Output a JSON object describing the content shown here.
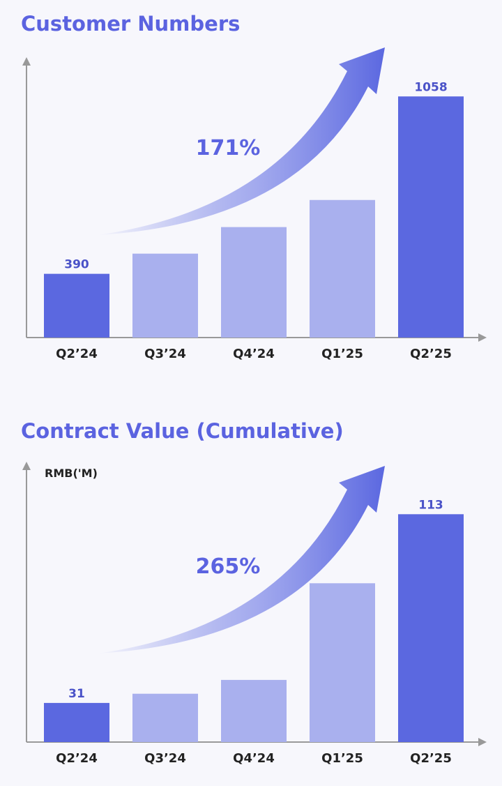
{
  "chart_data": [
    {
      "type": "bar",
      "title": "Customer Numbers",
      "categories": [
        "Q2’24",
        "Q3’24",
        "Q4’24",
        "Q1’25",
        "Q2’25"
      ],
      "values": [
        390,
        466,
        566,
        668,
        1058
      ],
      "value_labels": [
        "390",
        null,
        null,
        null,
        "1058"
      ],
      "colors": [
        "#5b68e0",
        "#a9b0ee",
        "#a9b0ee",
        "#a9b0ee",
        "#5b68e0"
      ],
      "ylim": [
        150,
        1190
      ],
      "annotation": "171%"
    },
    {
      "type": "bar",
      "title": "Contract Value (Cumulative)",
      "y_label": "RMB('M)",
      "categories": [
        "Q2’24",
        "Q3’24",
        "Q4’24",
        "Q1’25",
        "Q2’25"
      ],
      "values": [
        31,
        35,
        41,
        83,
        113
      ],
      "value_labels": [
        "31",
        null,
        null,
        null,
        "113"
      ],
      "colors": [
        "#5b68e0",
        "#a9b0ee",
        "#a9b0ee",
        "#a9b0ee",
        "#5b68e0"
      ],
      "ylim": [
        14,
        134
      ],
      "annotation": "265%"
    }
  ]
}
